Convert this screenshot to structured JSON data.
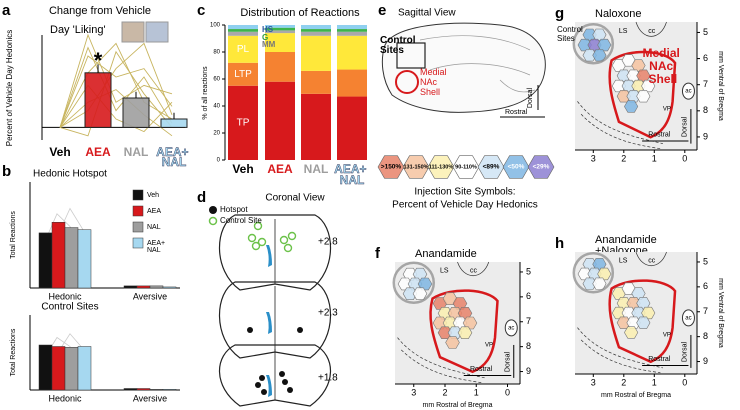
{
  "a": {
    "letter": "a",
    "title": "Change from Vehicle",
    "subtitle": "Day 'Liking'",
    "ylabel": "Percent of Vehicle Day Hedonics",
    "categories": [
      "Veh",
      "AEA",
      "NAL",
      "AEA+ NAL"
    ],
    "colors": [
      "#000000",
      "#d7191c",
      "#9e9e9e",
      "#a6d8f0"
    ],
    "values": [
      0,
      13,
      7,
      2
    ],
    "errors": [
      0,
      2,
      1.5,
      1.5
    ],
    "ylim": [
      -3,
      22
    ],
    "annotation": "*"
  },
  "b": {
    "letter": "b",
    "series_names": [
      "Veh",
      "AEA",
      "NAL",
      "AEA+ NAL"
    ],
    "colors": [
      "#111111",
      "#d7191c",
      "#9e9e9e",
      "#a6d8f0"
    ],
    "groups": [
      "Hedonic",
      "Aversive"
    ],
    "ylim": [
      0,
      100
    ],
    "charts": [
      {
        "title": "Hedonic Hotspot",
        "ylabel": "Total Reactions",
        "values": [
          [
            52,
            2
          ],
          [
            62,
            2
          ],
          [
            57,
            2
          ],
          [
            55,
            1
          ]
        ]
      },
      {
        "title": "Control Sites",
        "ylabel": "Total Reactions",
        "values": [
          [
            60,
            2
          ],
          [
            58,
            2
          ],
          [
            57,
            1
          ],
          [
            58,
            1
          ]
        ]
      }
    ]
  },
  "c": {
    "letter": "c",
    "title": "Distribution of Reactions",
    "ylabel": "% of all reactions",
    "ylim": [
      0,
      100
    ],
    "yticks": [
      0,
      20,
      40,
      60,
      80,
      100
    ],
    "categories": [
      "Veh",
      "AEA",
      "NAL",
      "AEA+ NAL"
    ],
    "category_colors": [
      "#000000",
      "#d7191c",
      "#9e9e9e",
      "#a6d8f0"
    ],
    "series": [
      {
        "name": "TP",
        "color": "#d7191c",
        "values": [
          55,
          58,
          49,
          47
        ]
      },
      {
        "name": "LTP",
        "color": "#f58231",
        "values": [
          17,
          22,
          17,
          20
        ]
      },
      {
        "name": "PL",
        "color": "#ffe83a",
        "values": [
          20,
          14,
          26,
          25
        ]
      },
      {
        "name": "MM",
        "color": "#a9a9a9",
        "values": [
          3,
          2,
          3,
          3
        ]
      },
      {
        "name": "G",
        "color": "#3cb44b",
        "values": [
          2,
          2,
          2,
          2
        ]
      },
      {
        "name": "HS",
        "color": "#8fd0f0",
        "values": [
          3,
          2,
          3,
          3
        ]
      }
    ]
  },
  "d": {
    "letter": "d",
    "title": "Coronal View",
    "legend": [
      "Hotspot",
      "Control Site"
    ],
    "levels": [
      "+2.8",
      "+2.3",
      "+1.8"
    ]
  },
  "e": {
    "letter": "e",
    "title": "Sagittal View",
    "control": "Control Sites",
    "shell": "Medial NAc Shell",
    "rostral": "Rostral",
    "dorsal": "Dorsal",
    "legend": [
      {
        "label": ">150%",
        "color": "#e8836a"
      },
      {
        "label": "131-150%",
        "color": "#f6c3a0"
      },
      {
        "label": "111-130%",
        "color": "#fbf0b0"
      },
      {
        "label": "90-110%",
        "color": "#ffffff"
      },
      {
        "label": "<89%",
        "color": "#cfe4f5"
      },
      {
        "label": "<50%",
        "color": "#7fb6e3"
      },
      {
        "label": "<29%",
        "color": "#8c7fd1"
      }
    ],
    "legend_title": "Injection Site Symbols:",
    "legend_subtitle": "Percent of Vehicle Day Hedonics"
  },
  "map_axes": {
    "xticks": [
      3,
      2,
      1,
      0
    ],
    "yticks": [
      5,
      6,
      7,
      8,
      9
    ],
    "xlim": [
      3.6,
      -0.4
    ],
    "ylim": [
      4.6,
      9.5
    ]
  },
  "maps": [
    {
      "letter": "f",
      "title": "Anandamide",
      "ls": "LS",
      "cc": "cc",
      "vp": "VP",
      "ac": "ac",
      "rostral": "Rostral",
      "dorsal": "Dorsal",
      "xlabel": "mm Rostral of Bregma"
    },
    {
      "letter": "g",
      "title": "Naloxone",
      "ls": "LS",
      "cc": "cc",
      "vp": "VP",
      "ac": "ac",
      "rostral": "Rostral",
      "dorsal": "Dorsal",
      "control": "Control Sites",
      "shell": "Medial NAc Shell",
      "ylabel": "mm Ventral of Bregma"
    },
    {
      "letter": "h",
      "title": "Anandamide +Naloxone",
      "ls": "LS",
      "cc": "cc",
      "vp": "VP",
      "ac": "ac",
      "rostral": "Rostral",
      "dorsal": "Dorsal",
      "xlabel": "mm Rostral of Bregma",
      "ylabel": "mm Ventral of Bregma"
    }
  ]
}
